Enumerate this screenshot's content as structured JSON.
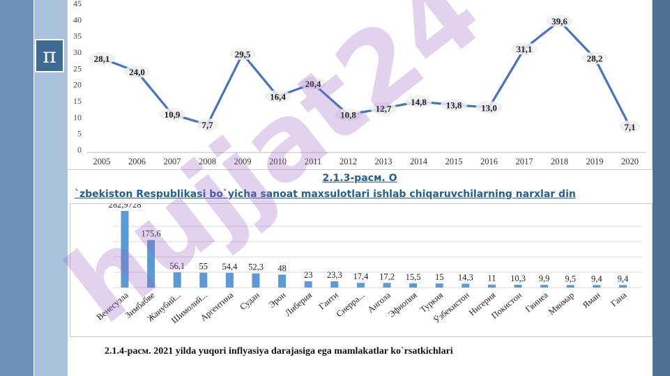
{
  "slide": {
    "pi_symbol": "π",
    "caption1_line1": "2.1.3-расм. O",
    "caption1_line2": "`zbekiston Respublikasi bo`yicha sanoat maxsulotlari ishlab chiqaruvchilarning narxlar din",
    "caption2": "2.1.4-расм. 2021 yilda yuqori inflyasiya darajasiga ega mamlakatlar ko`rsatkichlari",
    "watermark": "hujjat24",
    "colors": {
      "line": "#4472c4",
      "bar": "#5b9bd5",
      "watermark": "#9b5fc0",
      "accent": "#1f5f9e"
    }
  },
  "chart_data": [
    {
      "type": "line",
      "x": [
        "2005",
        "2006",
        "2007",
        "2008",
        "2009",
        "2010",
        "2011",
        "2012",
        "2013",
        "2014",
        "2015",
        "2016",
        "2017",
        "2018",
        "2019",
        "2020"
      ],
      "values": [
        28.1,
        24.0,
        10.9,
        7.7,
        29.5,
        16.4,
        20.4,
        10.8,
        12.7,
        14.8,
        13.8,
        13.0,
        31.1,
        39.6,
        28.2,
        7.1
      ],
      "labels": [
        "28,1",
        "24,0",
        "10,9",
        "7,7",
        "29,5",
        "16,4",
        "20,4",
        "10,8",
        "12,7",
        "14,8",
        "13,8",
        "13,0",
        "31,1",
        "39,6",
        "28,2",
        "7,1"
      ],
      "yticks": [
        "0",
        "5",
        "10",
        "15",
        "20",
        "25",
        "30",
        "35",
        "40",
        "45"
      ],
      "ylim": [
        0,
        45
      ],
      "grid": false
    },
    {
      "type": "bar",
      "categories": [
        "Венесуэла",
        "Зимбабве",
        "Жанубий...",
        "Шимолий...",
        "Аргентина",
        "Судан",
        "Эрон",
        "Либерия",
        "Гаити",
        "Сиерра...",
        "Ангола",
        "Эфиопия",
        "Туркия",
        "Ўзбекистон",
        "Нигерия",
        "Покистон",
        "Гвинеа",
        "Мянмар",
        "Яман",
        "Гана"
      ],
      "values": [
        282.9728,
        175.6,
        56.1,
        55,
        54.4,
        52.3,
        48,
        23,
        23.3,
        17.4,
        17.2,
        15.5,
        15,
        14.3,
        11,
        10.3,
        9.9,
        9.5,
        9.4,
        9.4
      ],
      "labels": [
        "282,9728",
        "175,6",
        "56,1",
        "55",
        "54,4",
        "52,3",
        "48",
        "23",
        "23,3",
        "17,4",
        "17,2",
        "15,5",
        "15",
        "14,3",
        "11",
        "10,3",
        "9,9",
        "9,5",
        "9,4",
        "9,4"
      ],
      "grid": true
    }
  ]
}
